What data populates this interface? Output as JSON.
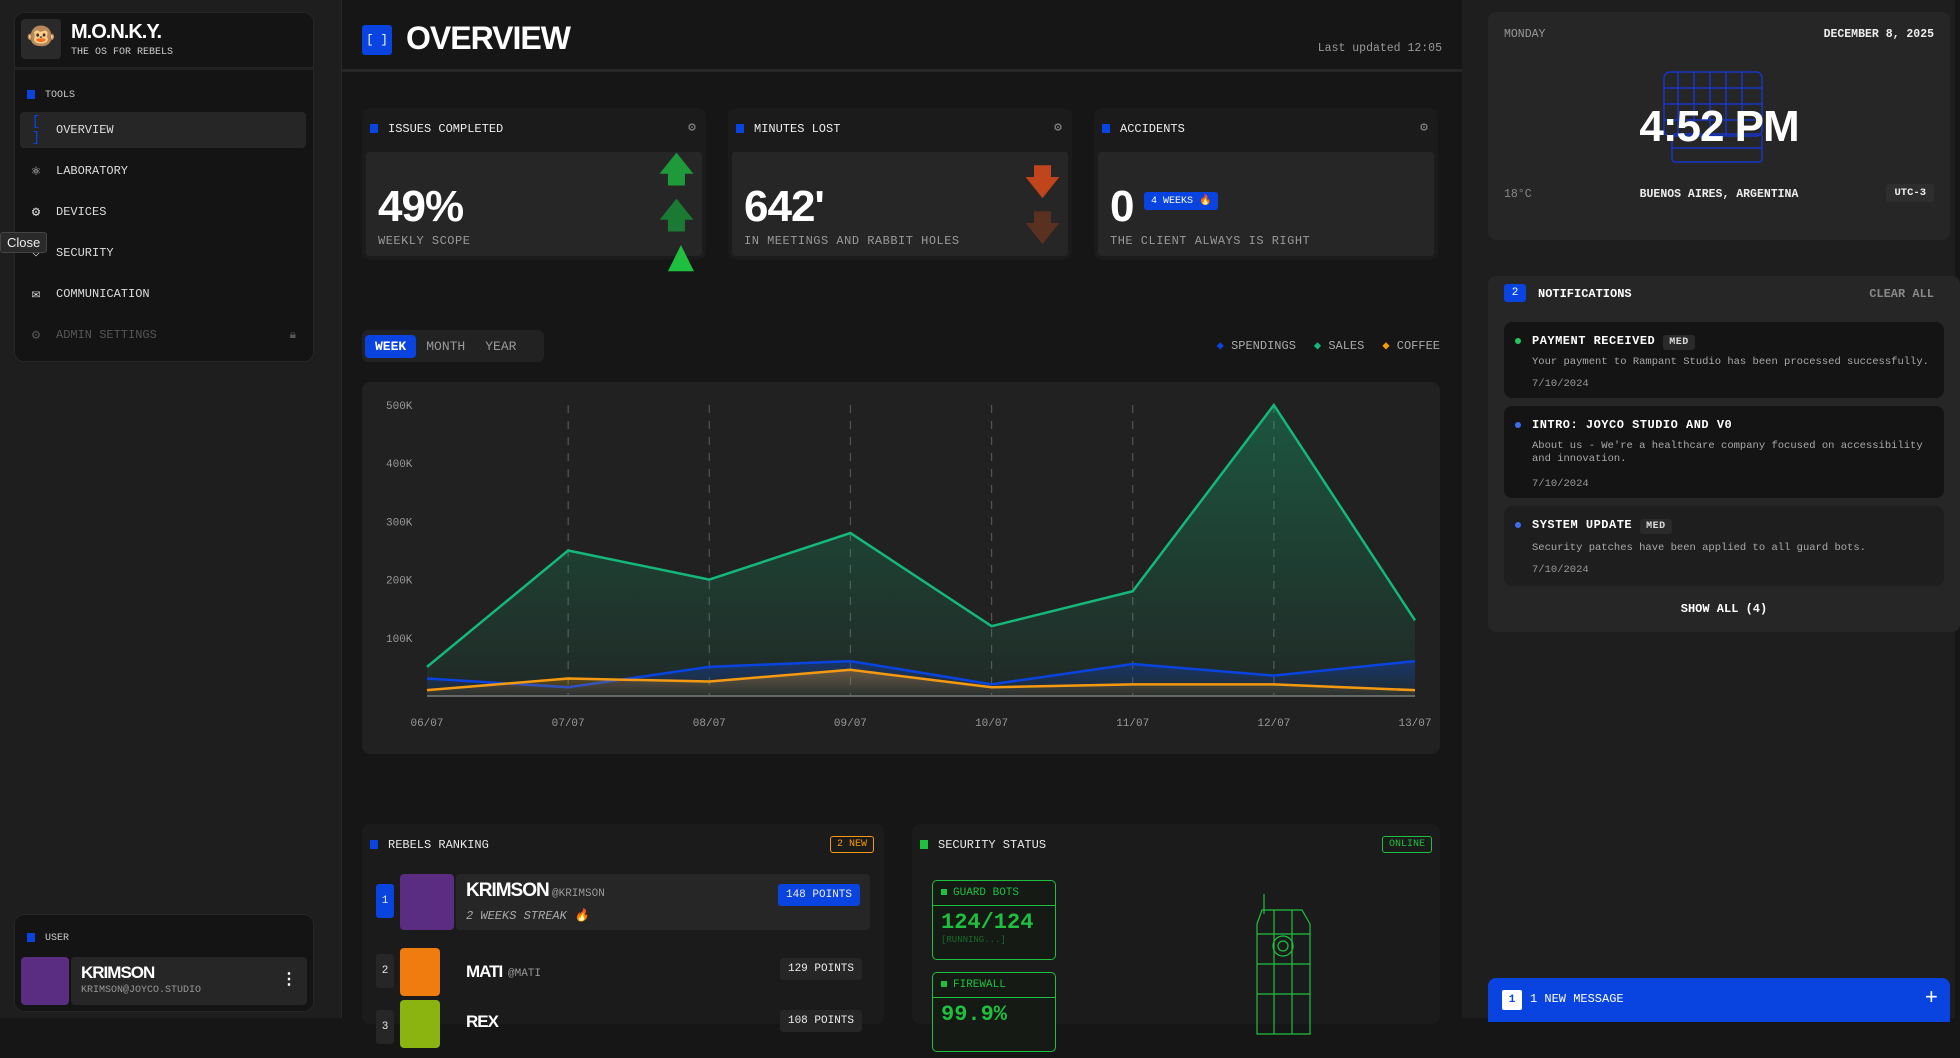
{
  "brand": {
    "name": "M.O.N.K.Y.",
    "tagline": "THE OS FOR REBELS"
  },
  "sidebar": {
    "section": "TOOLS",
    "tooltip": "Close",
    "items": [
      {
        "label": "OVERVIEW",
        "icon": "brackets-icon",
        "active": true
      },
      {
        "label": "LABORATORY",
        "icon": "atom-icon"
      },
      {
        "label": "DEVICES",
        "icon": "cpu-icon"
      },
      {
        "label": "SECURITY",
        "icon": "shield-icon"
      },
      {
        "label": "COMMUNICATION",
        "icon": "mail-icon"
      },
      {
        "label": "ADMIN SETTINGS",
        "icon": "gear-icon",
        "locked": true
      }
    ],
    "user_section": "USER",
    "user": {
      "name": "KRIMSON",
      "email": "KRIMSON@JOYCO.STUDIO"
    }
  },
  "header": {
    "icon": "[ ]",
    "title": "OVERVIEW",
    "last_updated": "Last updated 12:05"
  },
  "stats": [
    {
      "title": "ISSUES COMPLETED",
      "value": "49%",
      "subtitle": "WEEKLY SCOPE",
      "trend": "up"
    },
    {
      "title": "MINUTES LOST",
      "value": "642'",
      "subtitle": "IN MEETINGS AND RABBIT HOLES",
      "trend": "down"
    },
    {
      "title": "ACCIDENTS",
      "value": "0",
      "badge": "4 WEEKS 🔥",
      "subtitle": "THE CLIENT ALWAYS IS RIGHT"
    }
  ],
  "tabs": [
    "WEEK",
    "MONTH",
    "YEAR"
  ],
  "active_tab": "WEEK",
  "chart_data": {
    "type": "area",
    "x": [
      "06/07",
      "07/07",
      "08/07",
      "09/07",
      "10/07",
      "11/07",
      "12/07",
      "13/07"
    ],
    "yticks": [
      "100K",
      "200K",
      "300K",
      "400K",
      "500K"
    ],
    "ylim": [
      0,
      500000
    ],
    "grid": "vertical dashed",
    "legend": "top-right",
    "series": [
      {
        "name": "SPENDINGS",
        "color": "#0a44e0",
        "values": [
          30000,
          15000,
          50000,
          60000,
          20000,
          55000,
          35000,
          60000
        ]
      },
      {
        "name": "SALES",
        "color": "#14b87a",
        "values": [
          50000,
          250000,
          200000,
          280000,
          120000,
          180000,
          500000,
          130000
        ]
      },
      {
        "name": "COFFEE",
        "color": "#f59a10",
        "values": [
          10000,
          30000,
          25000,
          45000,
          15000,
          20000,
          20000,
          10000
        ]
      }
    ]
  },
  "ranking": {
    "title": "REBELS RANKING",
    "badge": "2 NEW",
    "rows": [
      {
        "rank": "1",
        "name": "KRIMSON",
        "handle": "@KRIMSON",
        "streak": "2 WEEKS STREAK 🔥",
        "points": "148 POINTS",
        "color": "#5a2d82"
      },
      {
        "rank": "2",
        "name": "MATI",
        "handle": "@MATI",
        "points": "129 POINTS",
        "color": "#f07c10"
      },
      {
        "rank": "3",
        "name": "REX",
        "handle": "",
        "points": "108 POINTS",
        "color": "#8cb410"
      }
    ]
  },
  "security": {
    "title": "SECURITY STATUS",
    "status": "ONLINE",
    "items": [
      {
        "label": "GUARD BOTS",
        "value": "124/124",
        "note": "[RUNNING...]"
      },
      {
        "label": "FIREWALL",
        "value": "99.9%"
      }
    ]
  },
  "clock": {
    "day": "MONDAY",
    "date": "DECEMBER 8, 2025",
    "time": "4:52 PM",
    "temp": "18°C",
    "location": "BUENOS AIRES, ARGENTINA",
    "tz": "UTC-3"
  },
  "notifications": {
    "count": "2",
    "title": "NOTIFICATIONS",
    "clear": "CLEAR ALL",
    "show_all": "SHOW ALL (4)",
    "items": [
      {
        "title": "PAYMENT RECEIVED",
        "priority": "MED",
        "body": "Your payment to Rampant Studio has been processed successfully.",
        "date": "7/10/2024",
        "dot": "#22c55e"
      },
      {
        "title": "INTRO: JOYCO STUDIO AND V0",
        "body": "About us - We're a healthcare company focused on accessibility and innovation.",
        "date": "7/10/2024",
        "dot": "#3b6ff0"
      },
      {
        "title": "SYSTEM UPDATE",
        "priority": "MED",
        "body": "Security patches have been applied to all guard bots.",
        "date": "7/10/2024",
        "dot": "#3b6ff0"
      }
    ]
  },
  "message_bar": {
    "count": "1",
    "label": "1 NEW MESSAGE"
  }
}
